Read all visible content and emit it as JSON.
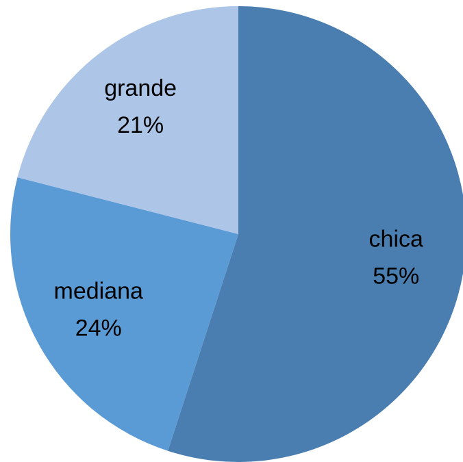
{
  "chart_data": {
    "type": "pie",
    "categories": [
      "chica",
      "mediana",
      "grande"
    ],
    "values": [
      55,
      24,
      21
    ],
    "value_labels": [
      "55%",
      "24%",
      "21%"
    ],
    "colors": [
      "#4a7eb0",
      "#5b9bd5",
      "#adc5e7"
    ]
  }
}
